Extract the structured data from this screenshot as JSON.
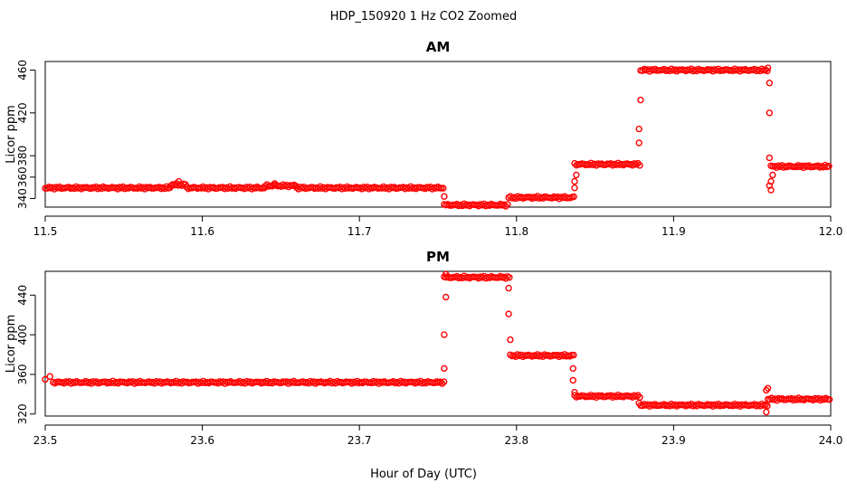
{
  "figure": {
    "title": "HDP_150920  1 Hz CO2 Zoomed",
    "xlabel": "Hour of Day (UTC)"
  },
  "chart_data": [
    {
      "type": "scatter",
      "title": "AM",
      "xlabel": "Hour of Day (UTC)",
      "ylabel": "Licor ppm",
      "xlim": [
        11.5,
        12.0
      ],
      "ylim": [
        332,
        468
      ],
      "xticks": [
        "11.5",
        "11.6",
        "11.7",
        "11.8",
        "11.9",
        "12.0"
      ],
      "xtick_values": [
        11.5,
        11.6,
        11.7,
        11.8,
        11.9,
        12.0
      ],
      "yticks": [
        "340",
        "360",
        "380",
        "420",
        "460"
      ],
      "ytick_values": [
        340,
        360,
        380,
        420,
        460
      ],
      "grid": false,
      "color": "#ff0000",
      "marker": "open-circle",
      "segments": [
        {
          "x": [
            11.5,
            11.58
          ],
          "y": 350
        },
        {
          "x": [
            11.58,
            11.59
          ],
          "y": 353
        },
        {
          "x": [
            11.59,
            11.64
          ],
          "y": 350
        },
        {
          "x": [
            11.64,
            11.66
          ],
          "y": 352
        },
        {
          "x": [
            11.66,
            11.754
          ],
          "y": 350
        },
        {
          "x": [
            11.754,
            11.795
          ],
          "y": 334
        },
        {
          "x": [
            11.795,
            11.837
          ],
          "y": 341
        },
        {
          "x": [
            11.837,
            11.879
          ],
          "y": 372
        },
        {
          "x": [
            11.879,
            11.96
          ],
          "y": 460
        },
        {
          "x": [
            11.962,
            12.0
          ],
          "y": 370
        }
      ],
      "points": [
        {
          "x": 11.585,
          "y": 356
        },
        {
          "x": 11.646,
          "y": 354
        },
        {
          "x": 11.754,
          "y": 342
        },
        {
          "x": 11.837,
          "y": 350
        },
        {
          "x": 11.837,
          "y": 356
        },
        {
          "x": 11.838,
          "y": 362
        },
        {
          "x": 11.878,
          "y": 392
        },
        {
          "x": 11.878,
          "y": 405
        },
        {
          "x": 11.879,
          "y": 432
        },
        {
          "x": 11.96,
          "y": 462
        },
        {
          "x": 11.961,
          "y": 448
        },
        {
          "x": 11.961,
          "y": 420
        },
        {
          "x": 11.961,
          "y": 378
        },
        {
          "x": 11.961,
          "y": 352
        },
        {
          "x": 11.962,
          "y": 348
        },
        {
          "x": 11.962,
          "y": 356
        },
        {
          "x": 11.963,
          "y": 362
        }
      ]
    },
    {
      "type": "scatter",
      "title": "PM",
      "xlabel": "",
      "ylabel": "Licor ppm",
      "xlim": [
        23.5,
        24.0
      ],
      "ylim": [
        318,
        464
      ],
      "xticks": [
        "23.5",
        "23.6",
        "23.7",
        "23.8",
        "23.9",
        "24.0"
      ],
      "xtick_values": [
        23.5,
        23.6,
        23.7,
        23.8,
        23.9,
        24.0
      ],
      "yticks": [
        "320",
        "360",
        "400",
        "440"
      ],
      "ytick_values": [
        320,
        360,
        400,
        440
      ],
      "grid": false,
      "color": "#ff0000",
      "marker": "open-circle",
      "segments": [
        {
          "x": [
            23.505,
            23.754
          ],
          "y": 352
        },
        {
          "x": [
            23.754,
            23.796
          ],
          "y": 458
        },
        {
          "x": [
            23.796,
            23.837
          ],
          "y": 379
        },
        {
          "x": [
            23.837,
            23.879
          ],
          "y": 338
        },
        {
          "x": [
            23.879,
            23.96
          ],
          "y": 329
        },
        {
          "x": [
            23.96,
            24.0
          ],
          "y": 335
        }
      ],
      "points": [
        {
          "x": 23.5,
          "y": 355
        },
        {
          "x": 23.503,
          "y": 358
        },
        {
          "x": 23.754,
          "y": 366
        },
        {
          "x": 23.754,
          "y": 400
        },
        {
          "x": 23.755,
          "y": 438
        },
        {
          "x": 23.755,
          "y": 461
        },
        {
          "x": 23.795,
          "y": 447
        },
        {
          "x": 23.795,
          "y": 421
        },
        {
          "x": 23.796,
          "y": 395
        },
        {
          "x": 23.836,
          "y": 366
        },
        {
          "x": 23.836,
          "y": 354
        },
        {
          "x": 23.837,
          "y": 342
        },
        {
          "x": 23.878,
          "y": 331
        },
        {
          "x": 23.959,
          "y": 344
        },
        {
          "x": 23.959,
          "y": 322
        },
        {
          "x": 23.96,
          "y": 346
        }
      ]
    }
  ]
}
